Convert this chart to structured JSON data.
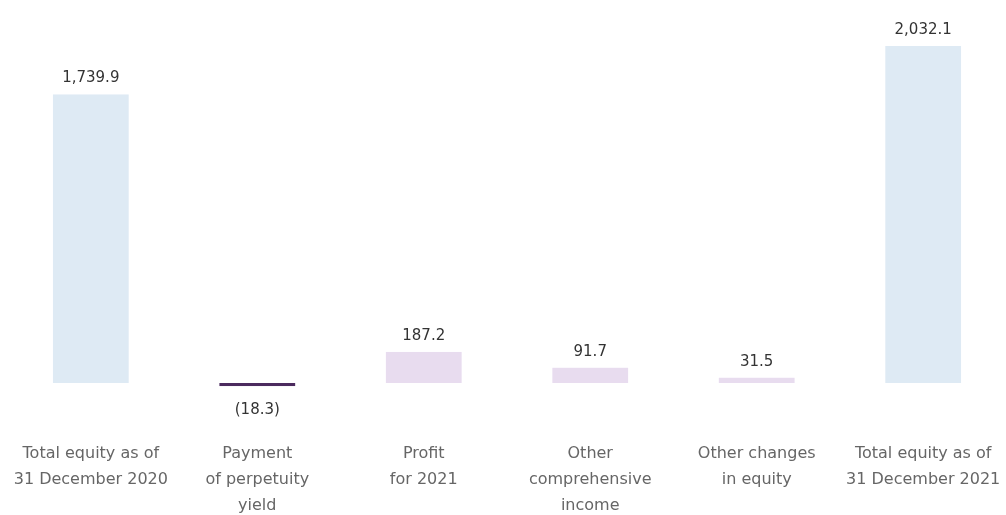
{
  "chart_data": {
    "type": "bar",
    "categories": [
      "Total equity as of\n31 December 2020",
      "Payment\nof perpetuity\nyield",
      "Profit\nfor 2021",
      "Other\ncomprehensive\nincome",
      "Other changes\nin equity",
      "Total equity as of\n31 December 2021"
    ],
    "values": [
      1739.9,
      -18.3,
      187.2,
      91.7,
      31.5,
      2032.1
    ],
    "colors": [
      "#deeaf4",
      "#4b2a5e",
      "#e8dcef",
      "#e8dcef",
      "#e8dcef",
      "#deeaf4"
    ],
    "value_labels": [
      "1,739.9",
      "(18.3)",
      "187.2",
      "91.7",
      "31.5",
      "2,032.1"
    ]
  }
}
